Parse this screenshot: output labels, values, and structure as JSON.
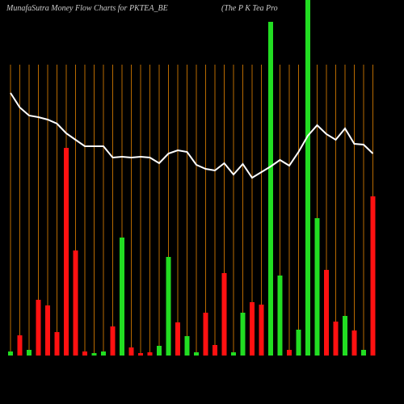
{
  "chart_data": {
    "type": "bar",
    "title": "MunafaSutra  Money Flow  Charts for PKTEA_BE",
    "subtitle": "(The    P K Tea  Pro",
    "categories": [
      null,
      null,
      null,
      null,
      null,
      null,
      null,
      null,
      null,
      null,
      null,
      null,
      null,
      null,
      null,
      null,
      null,
      null,
      null,
      null,
      null,
      null,
      null,
      null,
      null,
      null,
      null,
      null,
      null,
      null,
      null,
      null,
      null,
      null,
      null,
      null,
      null,
      null,
      null,
      null
    ],
    "series": [
      {
        "type": "bar",
        "values": [
          5,
          25,
          7,
          69,
          62,
          29,
          257,
          130,
          5,
          3,
          5,
          36,
          146,
          10,
          3,
          4,
          12,
          122,
          41,
          24,
          4,
          53,
          13,
          102,
          4,
          53,
          66,
          63,
          413,
          99,
          7,
          32,
          440,
          170,
          106,
          42,
          49,
          31,
          7,
          197
        ],
        "colors": [
          "#22dd22",
          "#ff1111",
          "#22dd22",
          "#ff1111",
          "#ff1111",
          "#ff1111",
          "#ff1111",
          "#ff1111",
          "#ff1111",
          "#22dd22",
          "#22dd22",
          "#ff1111",
          "#22dd22",
          "#ff1111",
          "#ff1111",
          "#ff1111",
          "#22dd22",
          "#22dd22",
          "#ff1111",
          "#22dd22",
          "#22dd22",
          "#ff1111",
          "#ff1111",
          "#ff1111",
          "#22dd22",
          "#22dd22",
          "#ff1111",
          "#ff1111",
          "#22dd22",
          "#22dd22",
          "#ff1111",
          "#22dd22",
          "#22dd22",
          "#22dd22",
          "#ff1111",
          "#ff1111",
          "#22dd22",
          "#ff1111",
          "#22dd22",
          "#ff1111"
        ]
      },
      {
        "type": "line",
        "color": "#ffffff",
        "values": [
          325,
          307,
          297,
          295,
          292,
          287,
          275,
          267,
          259,
          259,
          259,
          245,
          246,
          245,
          246,
          245,
          238,
          250,
          254,
          252,
          236,
          231,
          229,
          238,
          224,
          237,
          220,
          227,
          234,
          242,
          235,
          252,
          272,
          285,
          274,
          267,
          281,
          262,
          261,
          250
        ]
      }
    ],
    "ylim": [
      0,
      440
    ]
  }
}
